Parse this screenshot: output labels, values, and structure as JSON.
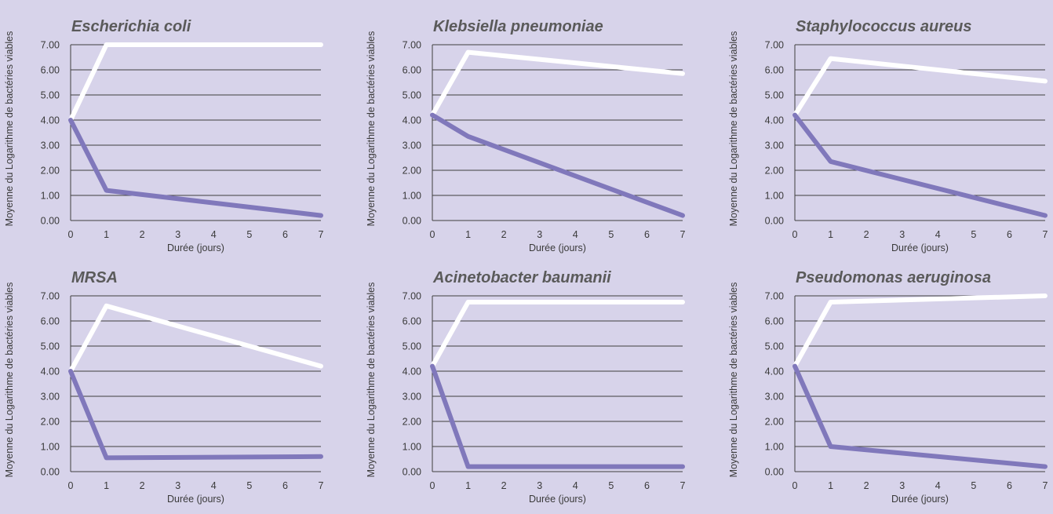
{
  "colors": {
    "background": "#d7d3ea",
    "treated_series": "#8078bb",
    "control_series": "#ffffff",
    "grid": "#3f3f3f",
    "title": "#5a5a5a"
  },
  "chart_data": [
    {
      "type": "line",
      "title": "Escherichia coli",
      "xlabel": "Durée (jours)",
      "ylabel": "Moyenne du Logarithme de bactéries viables",
      "x": [
        0,
        1,
        7
      ],
      "x_ticks": [
        "0",
        "1",
        "2",
        "3",
        "4",
        "5",
        "6",
        "7"
      ],
      "y_ticks": [
        "0.00",
        "1.00",
        "2.00",
        "3.00",
        "4.00",
        "5.00",
        "6.00",
        "7.00"
      ],
      "xlim": [
        0,
        7
      ],
      "ylim": [
        0,
        7
      ],
      "grid": true,
      "series": [
        {
          "color": "#ffffff",
          "values": [
            4.0,
            7.0,
            7.0
          ]
        },
        {
          "color": "#8078bb",
          "values": [
            4.0,
            1.2,
            0.2
          ]
        }
      ]
    },
    {
      "type": "line",
      "title": "Klebsiella pneumoniae",
      "xlabel": "Durée (jours)",
      "ylabel": "Moyenne du Logarithme de bactéries viables",
      "x": [
        0,
        1,
        7
      ],
      "x_ticks": [
        "0",
        "1",
        "2",
        "3",
        "4",
        "5",
        "6",
        "7"
      ],
      "y_ticks": [
        "0.00",
        "1.00",
        "2.00",
        "3.00",
        "4.00",
        "5.00",
        "6.00",
        "7.00"
      ],
      "xlim": [
        0,
        7
      ],
      "ylim": [
        0,
        7
      ],
      "grid": true,
      "series": [
        {
          "color": "#ffffff",
          "values": [
            4.2,
            6.7,
            5.85
          ]
        },
        {
          "color": "#8078bb",
          "values": [
            4.2,
            3.35,
            0.2
          ]
        }
      ]
    },
    {
      "type": "line",
      "title": "Staphylococcus aureus",
      "xlabel": "Durée (jours)",
      "ylabel": "Moyenne du Logarithme de bactéries viables",
      "x": [
        0,
        1,
        7
      ],
      "x_ticks": [
        "0",
        "1",
        "2",
        "3",
        "4",
        "5",
        "6",
        "7"
      ],
      "y_ticks": [
        "0.00",
        "1.00",
        "2.00",
        "3.00",
        "4.00",
        "5.00",
        "6.00",
        "7.00"
      ],
      "xlim": [
        0,
        7
      ],
      "ylim": [
        0,
        7
      ],
      "grid": true,
      "series": [
        {
          "color": "#ffffff",
          "values": [
            4.2,
            6.45,
            5.55
          ]
        },
        {
          "color": "#8078bb",
          "values": [
            4.2,
            2.35,
            0.2
          ]
        }
      ]
    },
    {
      "type": "line",
      "title": "MRSA",
      "xlabel": "Durée (jours)",
      "ylabel": "Moyenne du Logarithme de bactéries viables",
      "x": [
        0,
        1,
        7
      ],
      "x_ticks": [
        "0",
        "1",
        "2",
        "3",
        "4",
        "5",
        "6",
        "7"
      ],
      "y_ticks": [
        "0.00",
        "1.00",
        "2.00",
        "3.00",
        "4.00",
        "5.00",
        "6.00",
        "7.00"
      ],
      "xlim": [
        0,
        7
      ],
      "ylim": [
        0,
        7
      ],
      "grid": true,
      "series": [
        {
          "color": "#ffffff",
          "values": [
            4.0,
            6.6,
            4.2
          ]
        },
        {
          "color": "#8078bb",
          "values": [
            4.0,
            0.55,
            0.6
          ]
        }
      ]
    },
    {
      "type": "line",
      "title": "Acinetobacter baumanii",
      "xlabel": "Durée (jours)",
      "ylabel": "Moyenne du Logarithme de bactéries viables",
      "x": [
        0,
        1,
        7
      ],
      "x_ticks": [
        "0",
        "1",
        "2",
        "3",
        "4",
        "5",
        "6",
        "7"
      ],
      "y_ticks": [
        "0.00",
        "1.00",
        "2.00",
        "3.00",
        "4.00",
        "5.00",
        "6.00",
        "7.00"
      ],
      "xlim": [
        0,
        7
      ],
      "ylim": [
        0,
        7
      ],
      "grid": true,
      "series": [
        {
          "color": "#ffffff",
          "values": [
            4.2,
            6.75,
            6.75
          ]
        },
        {
          "color": "#8078bb",
          "values": [
            4.2,
            0.2,
            0.2
          ]
        }
      ]
    },
    {
      "type": "line",
      "title": "Pseudomonas aeruginosa",
      "xlabel": "Durée (jours)",
      "ylabel": "Moyenne du Logarithme de bactéries viables",
      "x": [
        0,
        1,
        7
      ],
      "x_ticks": [
        "0",
        "1",
        "2",
        "3",
        "4",
        "5",
        "6",
        "7"
      ],
      "y_ticks": [
        "0.00",
        "1.00",
        "2.00",
        "3.00",
        "4.00",
        "5.00",
        "6.00",
        "7.00"
      ],
      "xlim": [
        0,
        7
      ],
      "ylim": [
        0,
        7
      ],
      "grid": true,
      "series": [
        {
          "color": "#ffffff",
          "values": [
            4.2,
            6.75,
            7.0
          ]
        },
        {
          "color": "#8078bb",
          "values": [
            4.2,
            1.0,
            0.2
          ]
        }
      ]
    }
  ]
}
